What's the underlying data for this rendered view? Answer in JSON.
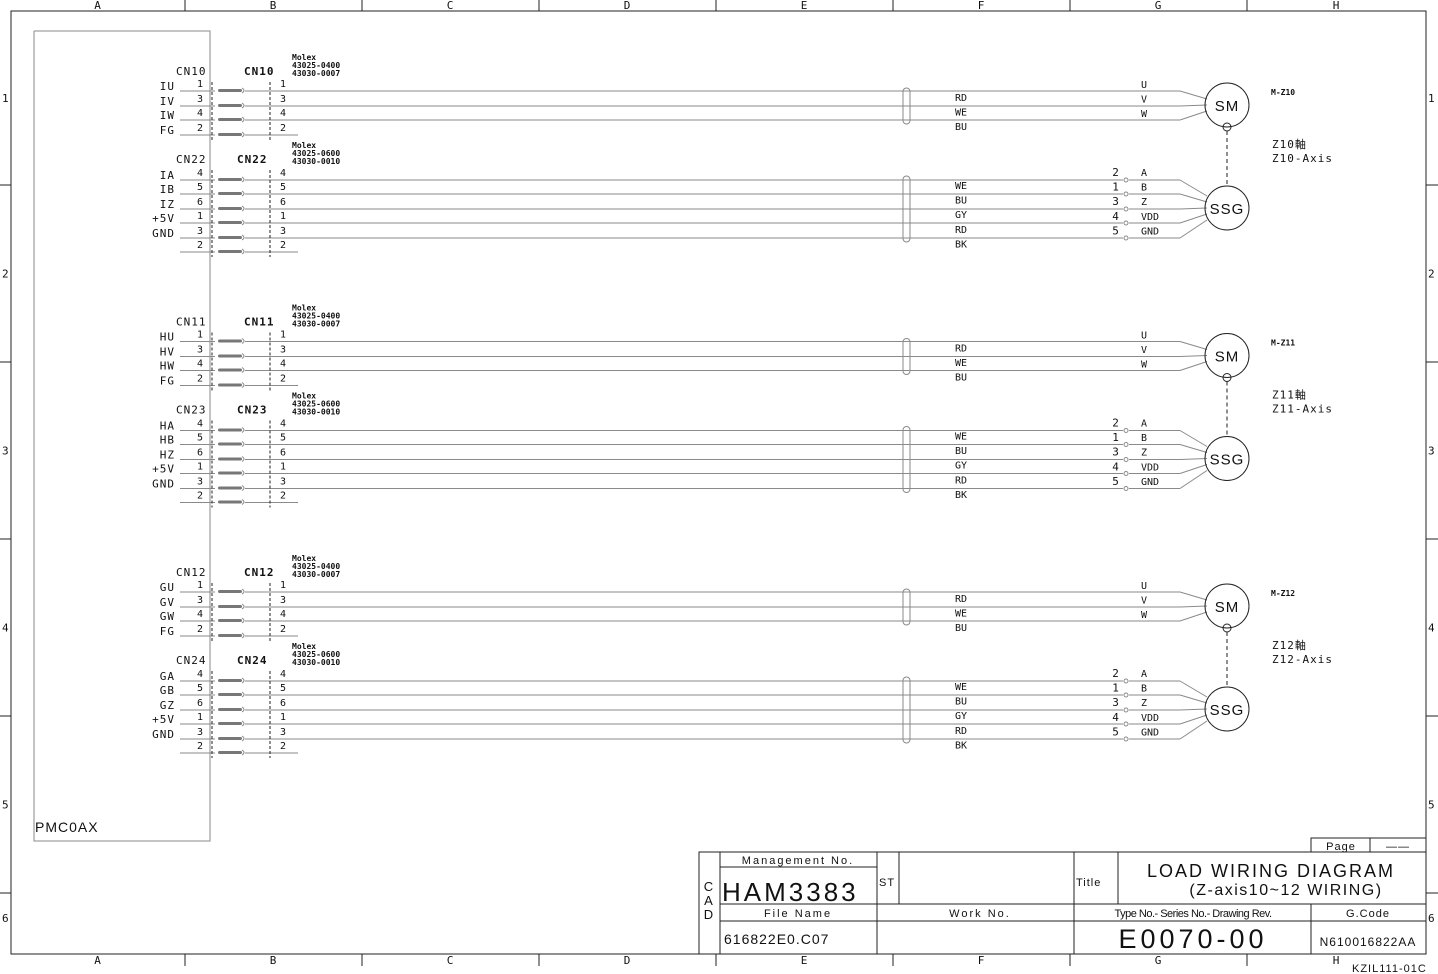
{
  "frame": {
    "columns": [
      "A",
      "B",
      "C",
      "D",
      "E",
      "F",
      "G",
      "H"
    ],
    "rows": [
      "1",
      "2",
      "3",
      "4",
      "5",
      "6"
    ]
  },
  "controller": {
    "label": "PMC0AX"
  },
  "groups": [
    {
      "motor_cn_left": "CN10",
      "motor_cn_right": "CN10",
      "motor_molex": [
        "Molex",
        "43025-0400",
        "43030-0007"
      ],
      "motor_signals": [
        "IU",
        "IV",
        "IW",
        "FG"
      ],
      "motor_pins": [
        "1",
        "3",
        "4",
        "2"
      ],
      "motor_colors": [
        "RD",
        "WE",
        "BU"
      ],
      "motor_terminals": [
        "U",
        "V",
        "W"
      ],
      "motor_name": "SM",
      "motor_id": "M-Z10",
      "enc_cn_left": "CN22",
      "enc_cn_right": "CN22",
      "enc_molex": [
        "Molex",
        "43025-0600",
        "43030-0010"
      ],
      "enc_signals": [
        "IA",
        "IB",
        "IZ",
        "+5V",
        "GND",
        ""
      ],
      "enc_pins": [
        "4",
        "5",
        "6",
        "1",
        "3",
        "2"
      ],
      "enc_colors": [
        "WE",
        "BU",
        "GY",
        "RD",
        "BK"
      ],
      "enc_pin_numbers": [
        "2",
        "1",
        "3",
        "4",
        "5"
      ],
      "enc_terminals": [
        "A",
        "B",
        "Z",
        "VDD",
        "GND"
      ],
      "enc_name": "SSG",
      "axis_jp": "Z10軸",
      "axis_en": "Z10-Axis"
    },
    {
      "motor_cn_left": "CN11",
      "motor_cn_right": "CN11",
      "motor_molex": [
        "Molex",
        "43025-0400",
        "43030-0007"
      ],
      "motor_signals": [
        "HU",
        "HV",
        "HW",
        "FG"
      ],
      "motor_pins": [
        "1",
        "3",
        "4",
        "2"
      ],
      "motor_colors": [
        "RD",
        "WE",
        "BU"
      ],
      "motor_terminals": [
        "U",
        "V",
        "W"
      ],
      "motor_name": "SM",
      "motor_id": "M-Z11",
      "enc_cn_left": "CN23",
      "enc_cn_right": "CN23",
      "enc_molex": [
        "Molex",
        "43025-0600",
        "43030-0010"
      ],
      "enc_signals": [
        "HA",
        "HB",
        "HZ",
        "+5V",
        "GND",
        ""
      ],
      "enc_pins": [
        "4",
        "5",
        "6",
        "1",
        "3",
        "2"
      ],
      "enc_colors": [
        "WE",
        "BU",
        "GY",
        "RD",
        "BK"
      ],
      "enc_pin_numbers": [
        "2",
        "1",
        "3",
        "4",
        "5"
      ],
      "enc_terminals": [
        "A",
        "B",
        "Z",
        "VDD",
        "GND"
      ],
      "enc_name": "SSG",
      "axis_jp": "Z11軸",
      "axis_en": "Z11-Axis"
    },
    {
      "motor_cn_left": "CN12",
      "motor_cn_right": "CN12",
      "motor_molex": [
        "Molex",
        "43025-0400",
        "43030-0007"
      ],
      "motor_signals": [
        "GU",
        "GV",
        "GW",
        "FG"
      ],
      "motor_pins": [
        "1",
        "3",
        "4",
        "2"
      ],
      "motor_colors": [
        "RD",
        "WE",
        "BU"
      ],
      "motor_terminals": [
        "U",
        "V",
        "W"
      ],
      "motor_name": "SM",
      "motor_id": "M-Z12",
      "enc_cn_left": "CN24",
      "enc_cn_right": "CN24",
      "enc_molex": [
        "Molex",
        "43025-0600",
        "43030-0010"
      ],
      "enc_signals": [
        "GA",
        "GB",
        "GZ",
        "+5V",
        "GND",
        ""
      ],
      "enc_pins": [
        "4",
        "5",
        "6",
        "1",
        "3",
        "2"
      ],
      "enc_colors": [
        "WE",
        "BU",
        "GY",
        "RD",
        "BK"
      ],
      "enc_pin_numbers": [
        "2",
        "1",
        "3",
        "4",
        "5"
      ],
      "enc_terminals": [
        "A",
        "B",
        "Z",
        "VDD",
        "GND"
      ],
      "enc_name": "SSG",
      "axis_jp": "Z12軸",
      "axis_en": "Z12-Axis"
    }
  ],
  "title_block": {
    "page_label": "Page",
    "page_value": "——",
    "cad": [
      "C",
      "A",
      "D"
    ],
    "management_label": "Management No.",
    "management_value": "HAM3383",
    "st_label": "ST",
    "title_label": "Title",
    "title_line1": "LOAD WIRING DIAGRAM",
    "title_line2": "(Z-axis10~12 WIRING)",
    "file_name_label": "File Name",
    "file_name_value": "616822E0.C07",
    "work_no_label": "Work No.",
    "type_label": "Type No.- Series No.- Drawing Rev.",
    "type_value": "E0070-00",
    "gcode_label": "G.Code",
    "gcode_value": "N610016822AA",
    "form_code": "KZIL111-01C"
  }
}
